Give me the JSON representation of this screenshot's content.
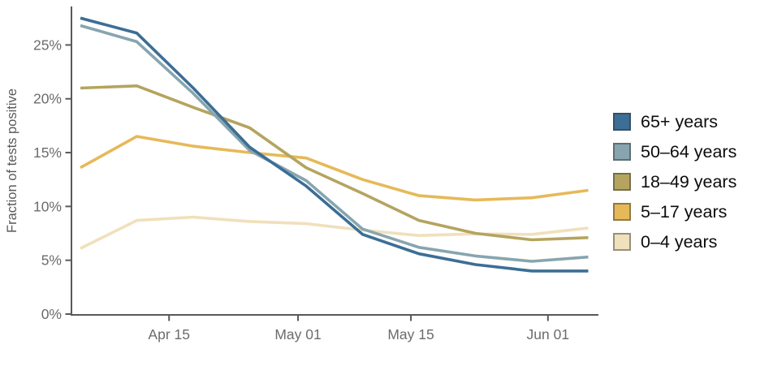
{
  "chart_data": {
    "type": "line",
    "title": "",
    "xlabel": "",
    "ylabel": "Fraction of tests positive",
    "grid": false,
    "legend_position": "right",
    "axis_color": "#58595B",
    "tick_label_color": "#6B6C6E",
    "background_color": "#FFFFFF",
    "ylim": [
      0,
      28.6
    ],
    "x_dates": [
      "Apr 04",
      "Apr 11",
      "Apr 18",
      "Apr 25",
      "May 02",
      "May 09",
      "May 16",
      "May 23",
      "May 30",
      "Jun 06"
    ],
    "x_day_offsets": [
      0,
      7,
      14,
      21,
      28,
      35,
      42,
      49,
      56,
      63
    ],
    "x_ticks": [
      {
        "label": "Apr 15",
        "day": 11
      },
      {
        "label": "May 01",
        "day": 27
      },
      {
        "label": "May 15",
        "day": 41
      },
      {
        "label": "Jun 01",
        "day": 58
      }
    ],
    "y_ticks": [
      {
        "label": "0%",
        "value": 0
      },
      {
        "label": "5%",
        "value": 5
      },
      {
        "label": "10%",
        "value": 10
      },
      {
        "label": "15%",
        "value": 15
      },
      {
        "label": "20%",
        "value": 20
      },
      {
        "label": "25%",
        "value": 25
      }
    ],
    "series": [
      {
        "key": "65-plus",
        "label": "65+ years",
        "color": "#3C6E96",
        "values": [
          27.5,
          26.1,
          21.0,
          15.5,
          11.9,
          7.4,
          5.6,
          4.6,
          4.0,
          4.0
        ]
      },
      {
        "key": "50-64",
        "label": "50–64 years",
        "color": "#87A5AF",
        "values": [
          26.8,
          25.3,
          20.5,
          15.2,
          12.4,
          7.9,
          6.2,
          5.4,
          4.9,
          5.3
        ]
      },
      {
        "key": "18-49",
        "label": "18–49 years",
        "color": "#B4A45F",
        "values": [
          21.0,
          21.2,
          19.2,
          17.3,
          13.6,
          11.2,
          8.7,
          7.5,
          6.9,
          7.1
        ]
      },
      {
        "key": "5-17",
        "label": "5–17 years",
        "color": "#E6B958",
        "values": [
          13.6,
          16.5,
          15.6,
          15.0,
          14.5,
          12.5,
          11.0,
          10.6,
          10.8,
          11.5
        ]
      },
      {
        "key": "0-4",
        "label": "0–4 years",
        "color": "#F0E0BC",
        "values": [
          6.1,
          8.7,
          9.0,
          8.6,
          8.4,
          7.8,
          7.3,
          7.45,
          7.4,
          8.0
        ]
      }
    ]
  }
}
